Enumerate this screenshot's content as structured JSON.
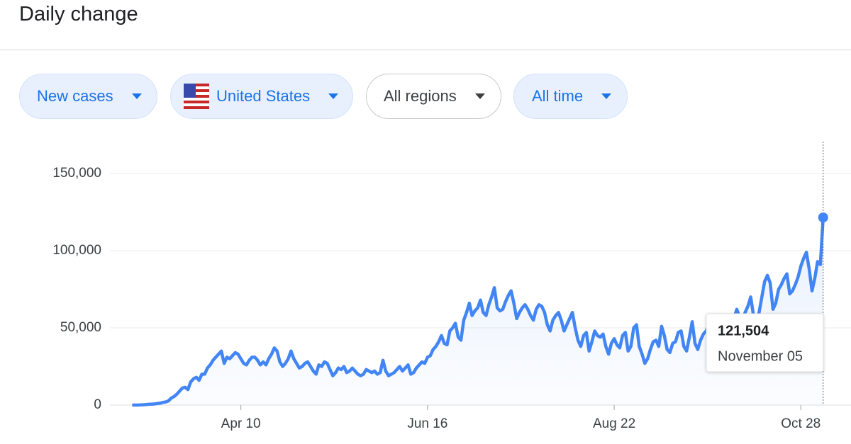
{
  "header": {
    "title": "Daily change"
  },
  "filters": [
    "New cases",
    "United States",
    "All regions",
    "All time"
  ],
  "chart_data": {
    "type": "line",
    "color": "#4285f4",
    "grid": true,
    "xlim": [
      54,
      320
    ],
    "ylim": [
      0,
      150000
    ],
    "xticks": [
      {
        "value": 101,
        "label": "Apr 10"
      },
      {
        "value": 168,
        "label": "Jun 16"
      },
      {
        "value": 235,
        "label": "Aug 22"
      },
      {
        "value": 302,
        "label": "Oct 28"
      }
    ],
    "yticks": [
      {
        "value": 0,
        "label": "0"
      },
      {
        "value": 50000,
        "label": "50,000"
      },
      {
        "value": 100000,
        "label": "100,000"
      },
      {
        "value": 150000,
        "label": "150,000"
      }
    ],
    "x": [
      62,
      63,
      64,
      65,
      66,
      67,
      68,
      69,
      70,
      71,
      72,
      73,
      74,
      75,
      76,
      77,
      78,
      79,
      80,
      81,
      82,
      83,
      84,
      85,
      86,
      87,
      88,
      89,
      90,
      91,
      92,
      93,
      94,
      95,
      96,
      97,
      98,
      99,
      100,
      101,
      102,
      103,
      104,
      105,
      106,
      107,
      108,
      109,
      110,
      111,
      112,
      113,
      114,
      115,
      116,
      117,
      118,
      119,
      120,
      121,
      122,
      123,
      124,
      125,
      126,
      127,
      128,
      129,
      130,
      131,
      132,
      133,
      134,
      135,
      136,
      137,
      138,
      139,
      140,
      141,
      142,
      143,
      144,
      145,
      146,
      147,
      148,
      149,
      150,
      151,
      152,
      153,
      154,
      155,
      156,
      157,
      158,
      159,
      160,
      161,
      162,
      163,
      164,
      165,
      166,
      167,
      168,
      169,
      170,
      171,
      172,
      173,
      174,
      175,
      176,
      177,
      178,
      179,
      180,
      181,
      182,
      183,
      184,
      185,
      186,
      187,
      188,
      189,
      190,
      191,
      192,
      193,
      194,
      195,
      196,
      197,
      198,
      199,
      200,
      201,
      202,
      203,
      204,
      205,
      206,
      207,
      208,
      209,
      210,
      211,
      212,
      213,
      214,
      215,
      216,
      217,
      218,
      219,
      220,
      221,
      222,
      223,
      224,
      225,
      226,
      227,
      228,
      229,
      230,
      231,
      232,
      233,
      234,
      235,
      236,
      237,
      238,
      239,
      240,
      241,
      242,
      243,
      244,
      245,
      246,
      247,
      248,
      249,
      250,
      251,
      252,
      253,
      254,
      255,
      256,
      257,
      258,
      259,
      260,
      261,
      262,
      263,
      264,
      265,
      266,
      267,
      268,
      269,
      270,
      271,
      272,
      273,
      274,
      275,
      276,
      277,
      278,
      279,
      280,
      281,
      282,
      283,
      284,
      285,
      286,
      287,
      288,
      289,
      290,
      291,
      292,
      293,
      294,
      295,
      296,
      297,
      298,
      299,
      300,
      301,
      302,
      303,
      304,
      305,
      306,
      307,
      308,
      309,
      310
    ],
    "values": [
      0,
      0,
      0,
      100,
      200,
      300,
      500,
      600,
      700,
      1000,
      1200,
      1700,
      2000,
      2700,
      4500,
      5500,
      7000,
      9000,
      11000,
      11500,
      10000,
      15000,
      17000,
      18000,
      16000,
      20000,
      20000,
      24000,
      26000,
      29000,
      31000,
      33000,
      35000,
      27000,
      31000,
      30000,
      32000,
      34000,
      33000,
      30000,
      27000,
      26000,
      29000,
      31000,
      31000,
      29000,
      26000,
      28000,
      26000,
      30000,
      33000,
      37000,
      35000,
      28000,
      25000,
      27000,
      30000,
      35000,
      30000,
      27000,
      24000,
      25000,
      27000,
      28000,
      25000,
      22000,
      20000,
      26000,
      25000,
      28000,
      27000,
      23000,
      19000,
      21000,
      24000,
      23000,
      25000,
      21000,
      22000,
      24000,
      22000,
      20000,
      19000,
      20000,
      23000,
      22000,
      21000,
      22000,
      20000,
      21000,
      29000,
      22000,
      19000,
      20000,
      21000,
      23000,
      25000,
      22000,
      24000,
      26000,
      20000,
      21000,
      24000,
      26000,
      28000,
      27000,
      31000,
      32000,
      36000,
      38000,
      41000,
      45000,
      40000,
      39000,
      48000,
      50000,
      53000,
      44000,
      42000,
      55000,
      60000,
      66000,
      58000,
      61000,
      63000,
      68000,
      60000,
      58000,
      65000,
      70000,
      76000,
      63000,
      61000,
      62000,
      67000,
      71000,
      74000,
      66000,
      56000,
      60000,
      63000,
      65000,
      62000,
      58000,
      55000,
      62000,
      65000,
      64000,
      60000,
      52000,
      48000,
      55000,
      58000,
      60000,
      55000,
      48000,
      52000,
      56000,
      60000,
      50000,
      42000,
      38000,
      45000,
      47000,
      35000,
      41000,
      48000,
      45000,
      44000,
      46000,
      38000,
      33000,
      40000,
      43000,
      39000,
      37000,
      45000,
      47000,
      35000,
      38000,
      50000,
      52000,
      38000,
      33000,
      27000,
      30000,
      36000,
      41000,
      42000,
      38000,
      51000,
      45000,
      36000,
      34000,
      40000,
      41000,
      47000,
      48000,
      38000,
      35000,
      44000,
      54000,
      40000,
      36000,
      42000,
      46000,
      48000,
      52000,
      43000,
      45000,
      50000,
      55000,
      58000,
      52000,
      47000,
      50000,
      56000,
      62000,
      57000,
      54000,
      60000,
      64000,
      70000,
      58000,
      53000,
      60000,
      70000,
      80000,
      84000,
      79000,
      62000,
      66000,
      75000,
      78000,
      82000,
      85000,
      72000,
      74000,
      78000,
      83000,
      90000,
      95000,
      99000,
      88000,
      74000,
      82000,
      93000,
      91000,
      121504
    ],
    "tooltip": {
      "label": "121,504",
      "date": "November 05"
    }
  }
}
